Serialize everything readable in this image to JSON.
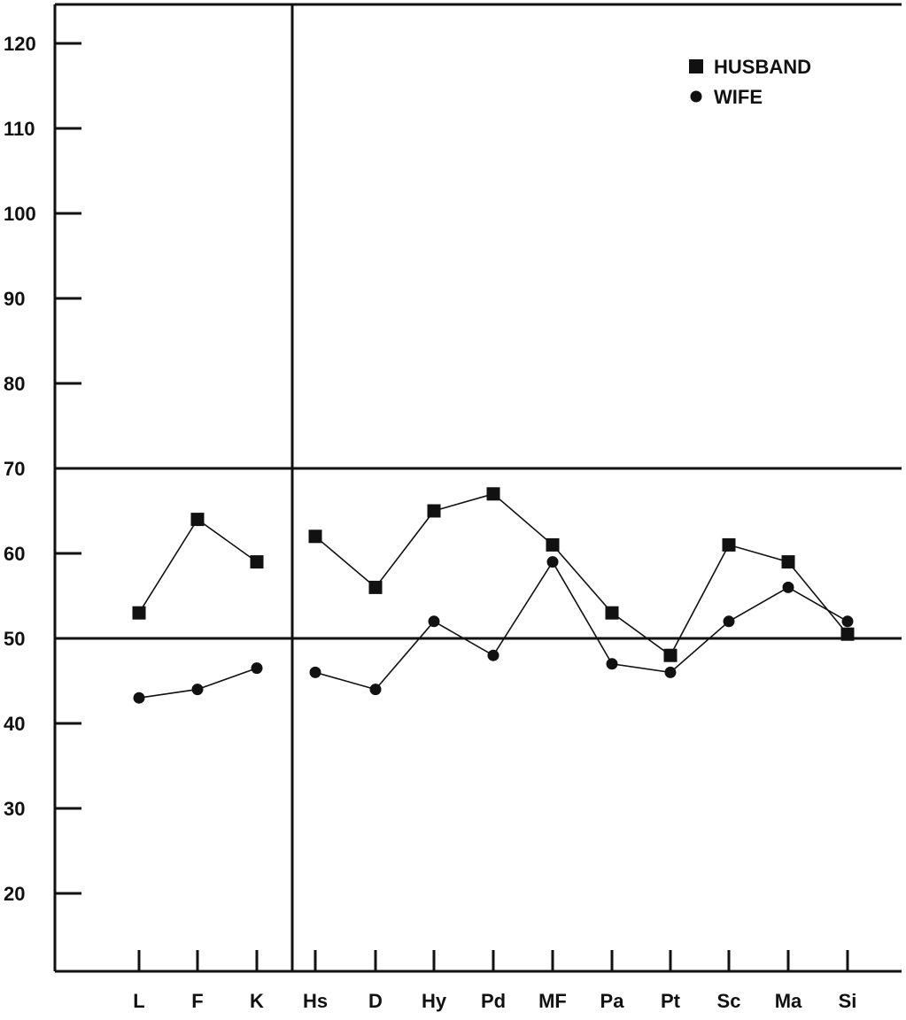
{
  "chart_data": {
    "type": "line",
    "title": "",
    "xlabel": "",
    "ylabel": "",
    "ylim": [
      10,
      125
    ],
    "yticks": [
      20,
      30,
      40,
      50,
      60,
      70,
      80,
      90,
      100,
      110,
      120
    ],
    "reference_lines": [
      50,
      70
    ],
    "legend_position": "top-right",
    "groups": [
      {
        "categories": [
          "L",
          "F",
          "K"
        ]
      },
      {
        "categories": [
          "Hs",
          "D",
          "Hy",
          "Pd",
          "MF",
          "Pa",
          "Pt",
          "Sc",
          "Ma",
          "Si"
        ]
      }
    ],
    "categories": [
      "L",
      "F",
      "K",
      "Hs",
      "D",
      "Hy",
      "Pd",
      "MF",
      "Pa",
      "Pt",
      "Sc",
      "Ma",
      "Si"
    ],
    "series": [
      {
        "name": "HUSBAND",
        "marker": "square",
        "values": [
          53,
          64,
          59,
          62,
          56,
          65,
          67,
          61,
          53,
          48,
          61,
          59,
          50.5
        ]
      },
      {
        "name": "WIFE",
        "marker": "circle",
        "values": [
          43,
          44,
          46.5,
          46,
          44,
          52,
          48,
          59,
          47,
          46,
          52,
          56,
          52
        ]
      }
    ]
  }
}
